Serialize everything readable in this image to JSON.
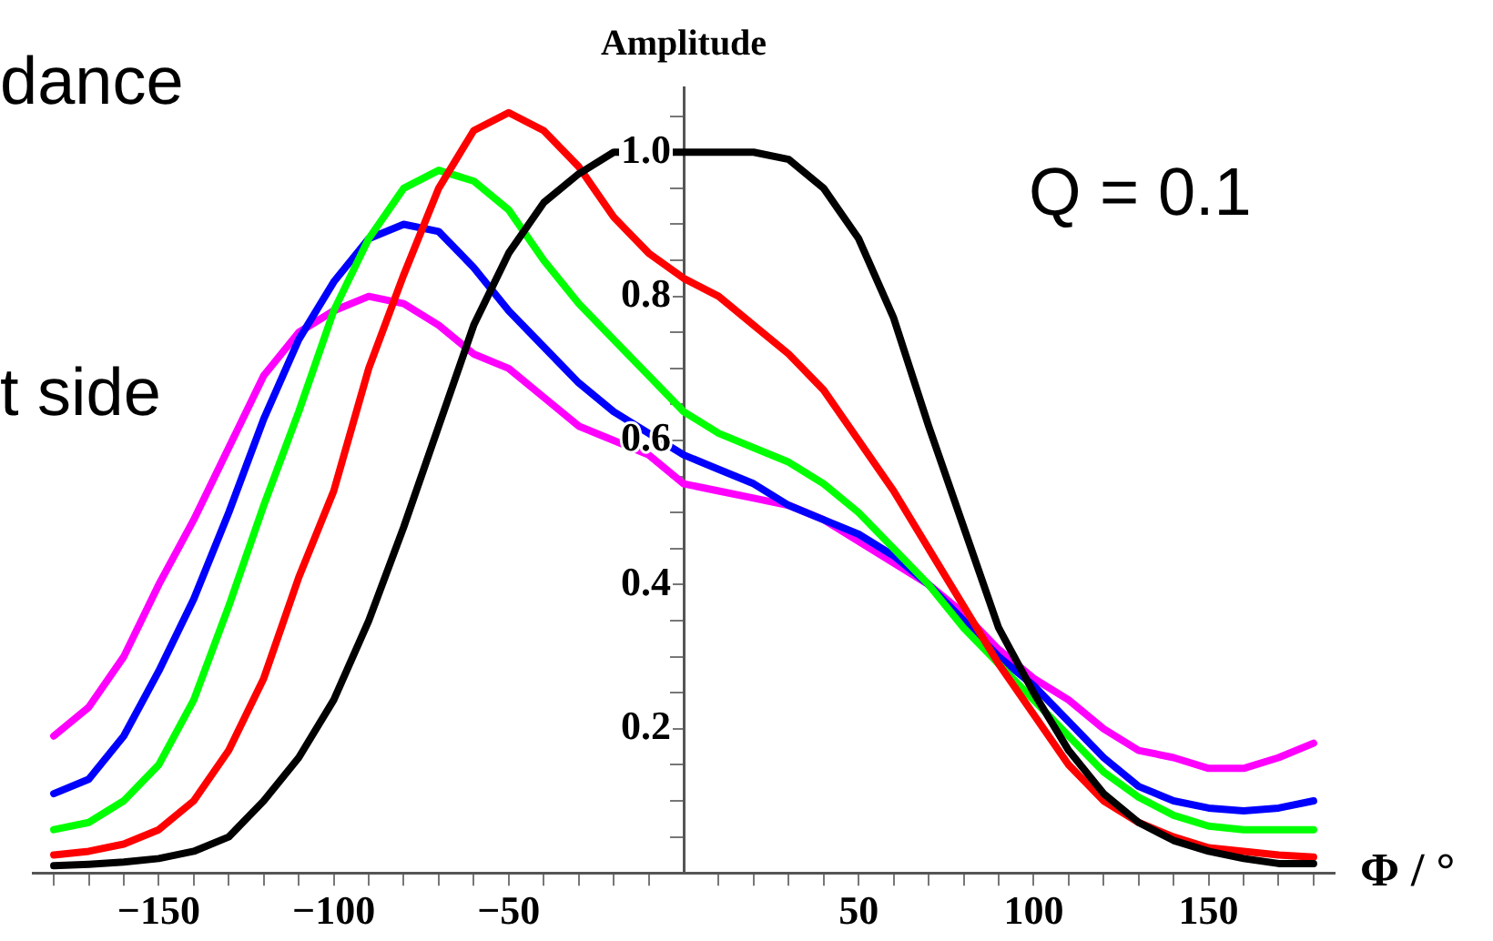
{
  "chart_data": {
    "type": "line",
    "xlabel": "Φ / °",
    "ylabel": "Amplitude",
    "annotations": [
      "dance",
      "t side",
      "Q = 0.1"
    ],
    "x": [
      -180,
      -170,
      -160,
      -150,
      -140,
      -130,
      -120,
      -110,
      -100,
      -90,
      -80,
      -70,
      -60,
      -50,
      -40,
      -30,
      -20,
      -10,
      0,
      10,
      20,
      30,
      40,
      50,
      60,
      70,
      80,
      90,
      100,
      110,
      120,
      130,
      140,
      150,
      160,
      170,
      180
    ],
    "series": [
      {
        "color": "#000000",
        "x": [
          -180,
          -170,
          -160,
          -150,
          -140,
          -130,
          -120,
          -110,
          -100,
          -90,
          -80,
          -70,
          -60,
          -50,
          -40,
          -30,
          -20,
          0,
          10,
          20,
          30,
          40,
          50,
          60,
          70,
          80,
          90,
          100,
          110,
          120,
          130,
          140,
          150,
          160,
          170,
          180
        ],
        "values": [
          0.01,
          0.012,
          0.015,
          0.02,
          0.03,
          0.05,
          0.1,
          0.16,
          0.24,
          0.35,
          0.48,
          0.62,
          0.76,
          0.86,
          0.93,
          0.97,
          1.0,
          1.0,
          1.0,
          1.0,
          0.99,
          0.95,
          0.88,
          0.77,
          0.62,
          0.48,
          0.34,
          0.25,
          0.17,
          0.11,
          0.07,
          0.045,
          0.03,
          0.02,
          0.013,
          0.013
        ]
      },
      {
        "color": "#ff0000",
        "values": [
          0.025,
          0.03,
          0.04,
          0.06,
          0.1,
          0.17,
          0.27,
          0.41,
          0.53,
          0.7,
          0.83,
          0.95,
          1.03,
          1.055,
          1.03,
          0.98,
          0.91,
          0.86,
          0.825,
          0.8,
          0.76,
          0.72,
          0.67,
          0.6,
          0.53,
          0.45,
          0.37,
          0.29,
          0.22,
          0.15,
          0.1,
          0.07,
          0.05,
          0.035,
          0.03,
          0.025,
          0.022
        ]
      },
      {
        "color": "#00ff00",
        "values": [
          0.06,
          0.07,
          0.1,
          0.15,
          0.24,
          0.37,
          0.51,
          0.64,
          0.78,
          0.88,
          0.95,
          0.975,
          0.96,
          0.92,
          0.85,
          0.79,
          0.74,
          0.69,
          0.64,
          0.61,
          0.59,
          0.57,
          0.54,
          0.5,
          0.45,
          0.4,
          0.34,
          0.29,
          0.24,
          0.19,
          0.14,
          0.105,
          0.08,
          0.065,
          0.06,
          0.06,
          0.06
        ]
      },
      {
        "color": "#0000ff",
        "values": [
          0.11,
          0.13,
          0.19,
          0.28,
          0.38,
          0.5,
          0.63,
          0.74,
          0.82,
          0.88,
          0.9,
          0.89,
          0.84,
          0.78,
          0.73,
          0.68,
          0.64,
          0.61,
          0.58,
          0.56,
          0.54,
          0.51,
          0.49,
          0.47,
          0.44,
          0.4,
          0.35,
          0.3,
          0.26,
          0.21,
          0.16,
          0.12,
          0.1,
          0.09,
          0.086,
          0.09,
          0.1
        ]
      },
      {
        "color": "#ff00ff",
        "values": [
          0.19,
          0.23,
          0.3,
          0.4,
          0.49,
          0.59,
          0.69,
          0.75,
          0.78,
          0.8,
          0.79,
          0.76,
          0.72,
          0.7,
          0.66,
          0.62,
          0.6,
          0.58,
          0.54,
          0.53,
          0.52,
          0.51,
          0.49,
          0.46,
          0.43,
          0.4,
          0.36,
          0.31,
          0.27,
          0.24,
          0.2,
          0.17,
          0.16,
          0.145,
          0.145,
          0.16,
          0.18
        ]
      }
    ],
    "xlim": [
      -186,
      186
    ],
    "ylim": [
      0,
      1.09
    ],
    "xticks": [
      {
        "value": -180,
        "label": null
      },
      {
        "value": -170,
        "label": null
      },
      {
        "value": -160,
        "label": null
      },
      {
        "value": -150,
        "label": "−150"
      },
      {
        "value": -140,
        "label": null
      },
      {
        "value": -130,
        "label": null
      },
      {
        "value": -120,
        "label": null
      },
      {
        "value": -110,
        "label": null
      },
      {
        "value": -100,
        "label": "−100"
      },
      {
        "value": -90,
        "label": null
      },
      {
        "value": -80,
        "label": null
      },
      {
        "value": -70,
        "label": null
      },
      {
        "value": -60,
        "label": null
      },
      {
        "value": -50,
        "label": "−50"
      },
      {
        "value": -40,
        "label": null
      },
      {
        "value": -30,
        "label": null
      },
      {
        "value": -20,
        "label": null
      },
      {
        "value": -10,
        "label": null
      },
      {
        "value": 10,
        "label": null
      },
      {
        "value": 20,
        "label": null
      },
      {
        "value": 30,
        "label": null
      },
      {
        "value": 40,
        "label": null
      },
      50,
      {
        "value": 60,
        "label": null
      },
      {
        "value": 70,
        "label": null
      },
      {
        "value": 80,
        "label": null
      },
      {
        "value": 90,
        "label": null
      },
      100,
      {
        "value": 110,
        "label": null
      },
      {
        "value": 120,
        "label": null
      },
      {
        "value": 130,
        "label": null
      },
      {
        "value": 140,
        "label": null
      },
      150,
      {
        "value": 160,
        "label": null
      },
      {
        "value": 170,
        "label": null
      },
      {
        "value": 180,
        "label": null
      }
    ],
    "yticks": [
      {
        "value": 0.05,
        "label": null
      },
      {
        "value": 0.1,
        "label": null
      },
      {
        "value": 0.15,
        "label": null
      },
      0.2,
      {
        "value": 0.25,
        "label": null
      },
      {
        "value": 0.3,
        "label": null
      },
      {
        "value": 0.35,
        "label": null
      },
      0.4,
      {
        "value": 0.45,
        "label": null
      },
      {
        "value": 0.5,
        "label": null
      },
      {
        "value": 0.55,
        "label": null
      },
      0.6,
      {
        "value": 0.65,
        "label": null
      },
      {
        "value": 0.7,
        "label": null
      },
      {
        "value": 0.75,
        "label": null
      },
      0.8,
      {
        "value": 0.85,
        "label": null
      },
      {
        "value": 0.9,
        "label": null
      },
      {
        "value": 0.95,
        "label": null
      },
      {
        "value": 1,
        "label": "1.0"
      },
      {
        "value": 1.05,
        "label": null
      }
    ],
    "grid": false,
    "legend": false,
    "marker": "none",
    "line_style": "solid"
  }
}
